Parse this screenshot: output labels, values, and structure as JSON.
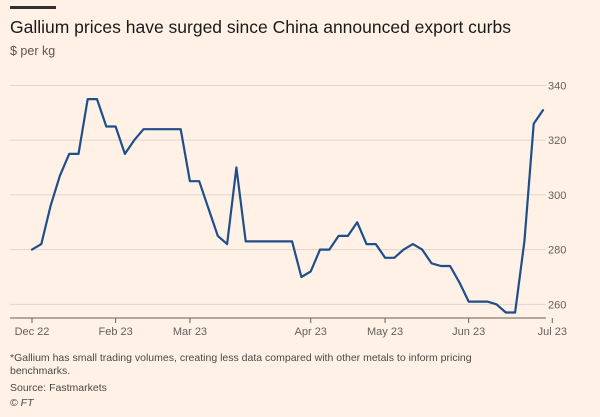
{
  "chart_data": {
    "type": "line",
    "title": "Gallium prices have surged since China announced export curbs",
    "ylabel": "$ per kg",
    "xlabel": "",
    "ylim": [
      255,
      342
    ],
    "yticks": [
      260,
      280,
      300,
      320,
      340
    ],
    "grid": true,
    "x_tick_labels": [
      "Dec 22",
      "Feb 23",
      "Mar 23",
      "Apr 23",
      "May 23",
      "Jun 23",
      "Jul 23"
    ],
    "x_tick_positions": [
      0,
      9,
      17,
      30,
      38,
      47,
      56
    ],
    "series": [
      {
        "name": "Gallium price",
        "color": "#1f4e8c",
        "values": [
          280,
          282,
          296,
          307,
          315,
          315,
          335,
          335,
          325,
          325,
          315,
          320,
          324,
          324,
          324,
          324,
          324,
          305,
          305,
          295,
          285,
          282,
          310,
          283,
          283,
          283,
          283,
          283,
          283,
          270,
          272,
          280,
          280,
          285,
          285,
          290,
          282,
          282,
          277,
          277,
          280,
          282,
          280,
          275,
          274,
          274,
          268,
          261,
          261,
          261,
          260,
          257,
          257,
          283,
          326,
          331
        ]
      }
    ]
  },
  "footnote": "*Gallium has small trading volumes, creating less data compared with other metals to inform pricing benchmarks.",
  "source": "Source: Fastmarkets",
  "logo": "© FT"
}
